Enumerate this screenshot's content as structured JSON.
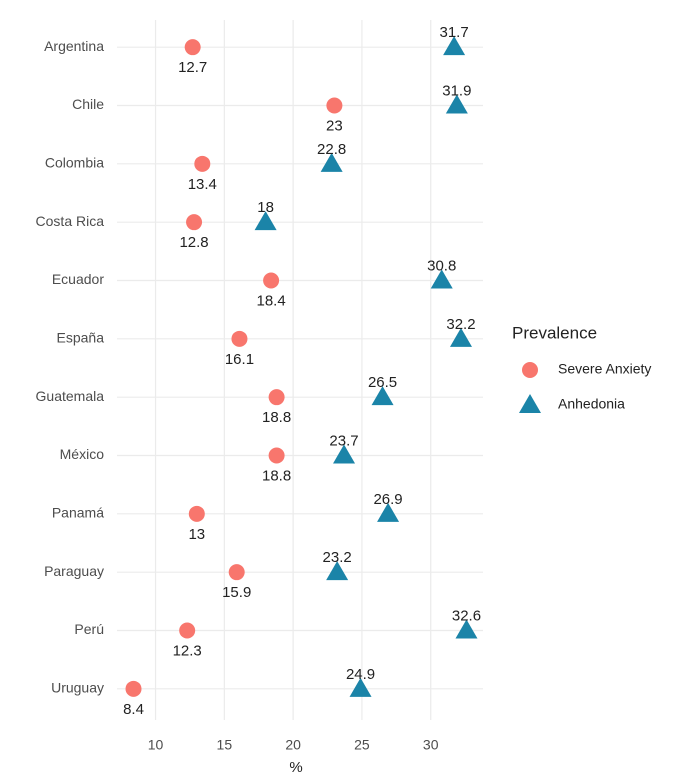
{
  "chart_data": {
    "type": "dot",
    "categories": [
      "Argentina",
      "Chile",
      "Colombia",
      "Costa Rica",
      "Ecuador",
      "España",
      "Guatemala",
      "México",
      "Panamá",
      "Paraguay",
      "Perú",
      "Uruguay"
    ],
    "series": [
      {
        "name": "Severe Anxiety",
        "color": "#f8766d",
        "marker": "circle",
        "values": [
          12.7,
          23,
          13.4,
          12.8,
          18.4,
          16.1,
          18.8,
          18.8,
          13,
          15.9,
          12.3,
          8.4
        ]
      },
      {
        "name": "Anhedonia",
        "color": "#1b84a8",
        "marker": "triangle",
        "values": [
          31.7,
          31.9,
          22.8,
          18,
          30.8,
          32.2,
          26.5,
          23.7,
          26.9,
          23.2,
          32.6,
          24.9
        ]
      }
    ],
    "x_label": "%",
    "legend_title": "Prevalence",
    "legend": "right",
    "xlim": [
      7.2,
      33.8
    ],
    "xticks": [
      10,
      15,
      20,
      25,
      30
    ],
    "grid": true
  }
}
